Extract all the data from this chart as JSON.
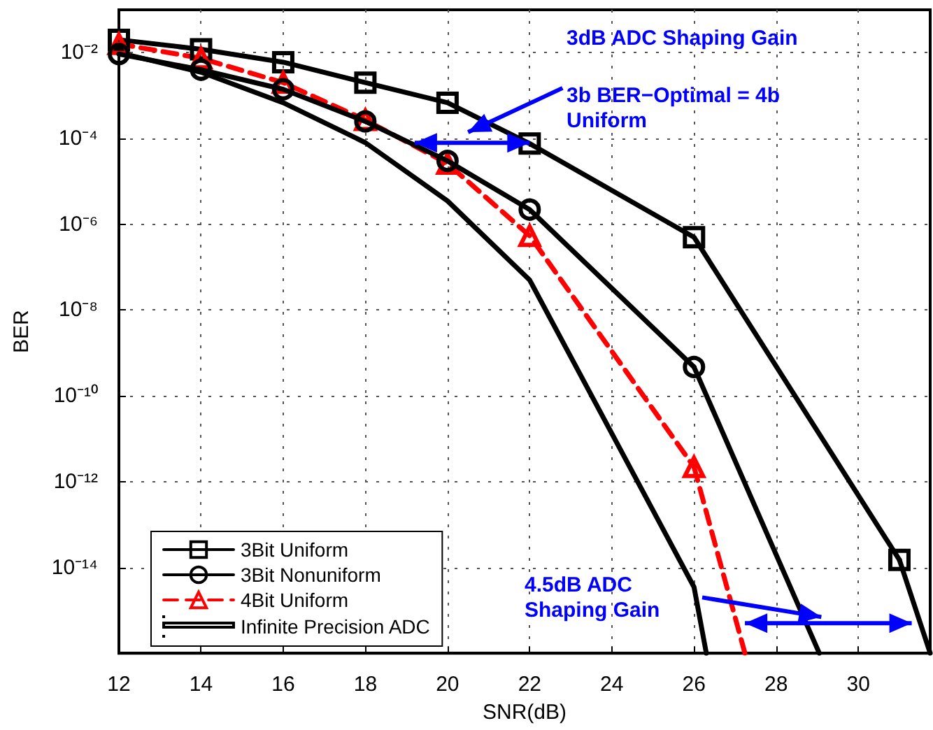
{
  "chart_data": {
    "type": "line",
    "xlabel": "SNR(dB)",
    "ylabel": "BER",
    "log": "y",
    "grid": true,
    "legend": "bottom left",
    "xlim": [
      12,
      31.75
    ],
    "xticks": [
      12,
      14,
      16,
      18,
      20,
      22,
      24,
      26,
      28,
      30
    ],
    "ylim": [
      1e-16,
      0.1
    ],
    "yticks": [
      {
        "value": 0.01,
        "label": "10⁻²"
      },
      {
        "value": 0.0001,
        "label": "10⁻⁴"
      },
      {
        "value": 1e-06,
        "label": "10⁻⁶"
      },
      {
        "value": 1e-08,
        "label": "10⁻⁸"
      },
      {
        "value": 1e-10,
        "label": "10⁻¹⁰"
      },
      {
        "value": 1e-12,
        "label": "10⁻¹²"
      },
      {
        "value": 1e-14,
        "label": "10⁻¹⁴"
      }
    ],
    "series": [
      {
        "name": "3Bit Uniform",
        "color": "#000000",
        "marker": "square",
        "line_style": "solid",
        "x": [
          12,
          14,
          16,
          18,
          20,
          22,
          26,
          31
        ],
        "values": [
          0.02,
          0.012,
          0.006,
          0.002,
          0.00068,
          7.6e-05,
          5e-07,
          1.5e-14
        ]
      },
      {
        "name": "3Bit Nonuniform",
        "color": "#000000",
        "marker": "circle",
        "line_style": "solid",
        "x": [
          12,
          14,
          16,
          18,
          20,
          22,
          26
        ],
        "values": [
          0.0093,
          0.004,
          0.0014,
          0.00025,
          3e-05,
          2.2e-06,
          4.7e-10
        ]
      },
      {
        "name": "4Bit Uniform",
        "color": "#ff0000",
        "marker": "triangle",
        "line_style": "dashed",
        "x": [
          12,
          14,
          16,
          18,
          20,
          22,
          26
        ],
        "values": [
          0.016,
          0.0074,
          0.002,
          0.00027,
          2.6e-05,
          5.4e-07,
          2.2e-12
        ]
      },
      {
        "name": "Infinite Precision ADC",
        "color": "#000000",
        "marker": "none",
        "line_style": "solid",
        "x": [
          12,
          14,
          16,
          18,
          20,
          22,
          26,
          26.3
        ],
        "values": [
          0.01,
          0.0035,
          0.00068,
          8e-05,
          3.5e-06,
          5e-08,
          3.5e-15,
          1e-16
        ]
      },
      {
        "color": "#000000",
        "marker": "none",
        "line_style": "solid",
        "x": [
          31,
          31.75
        ],
        "values": [
          1.5e-14,
          1e-16
        ]
      },
      {
        "color": "#000000",
        "marker": "none",
        "line_style": "solid",
        "x": [
          26,
          29.05
        ],
        "values": [
          4.7e-10,
          1e-16
        ]
      },
      {
        "color": "#ff0000",
        "marker": "none",
        "line_style": "dashed",
        "x": [
          26,
          27.24
        ],
        "values": [
          2.2e-12,
          1e-16
        ]
      }
    ],
    "annotations": [
      "3dB ADC Shaping Gain",
      "3b BER−Optimal = 4b Uniform",
      "4.5dB ADC Shaping Gain"
    ]
  }
}
